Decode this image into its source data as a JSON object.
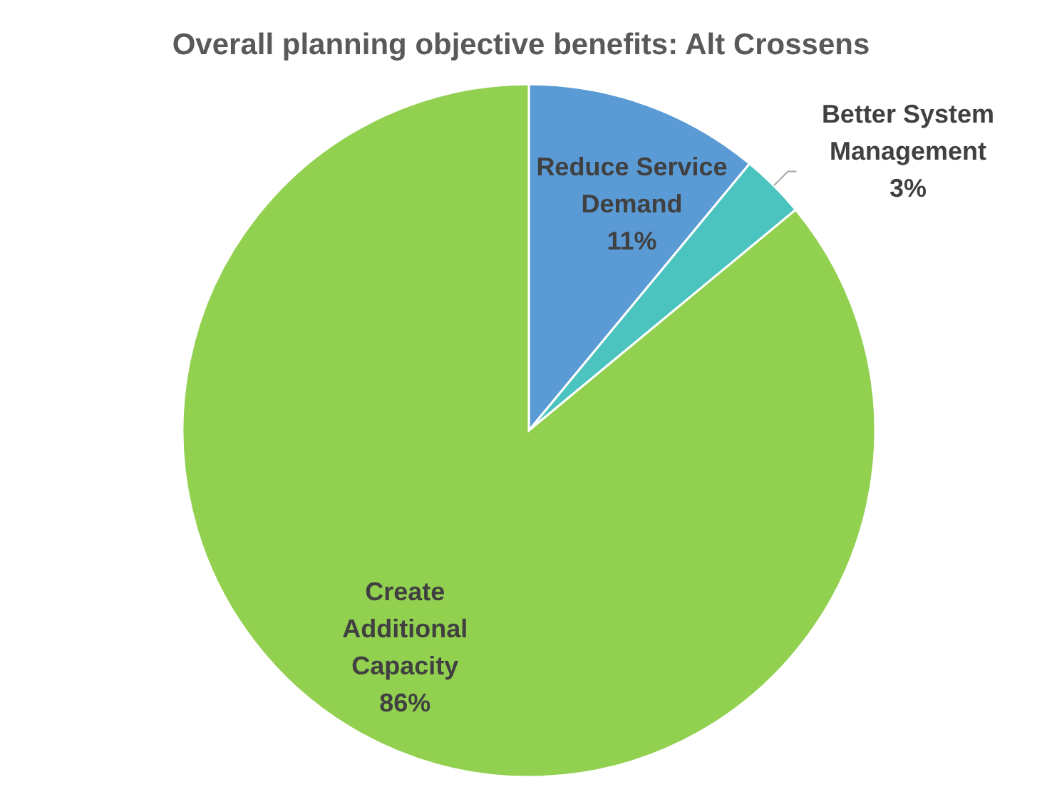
{
  "chart_data": {
    "type": "pie",
    "title": "Overall planning objective benefits: Alt Crossens",
    "categories": [
      "Reduce Service Demand",
      "Better System Management",
      "Create Additional Capacity"
    ],
    "values": [
      11,
      3,
      86
    ],
    "colors": [
      "#5b9bd5",
      "#4bc4c0",
      "#92d050"
    ],
    "data_labels": true,
    "value_labels": [
      "11%",
      "3%",
      "86%"
    ]
  }
}
